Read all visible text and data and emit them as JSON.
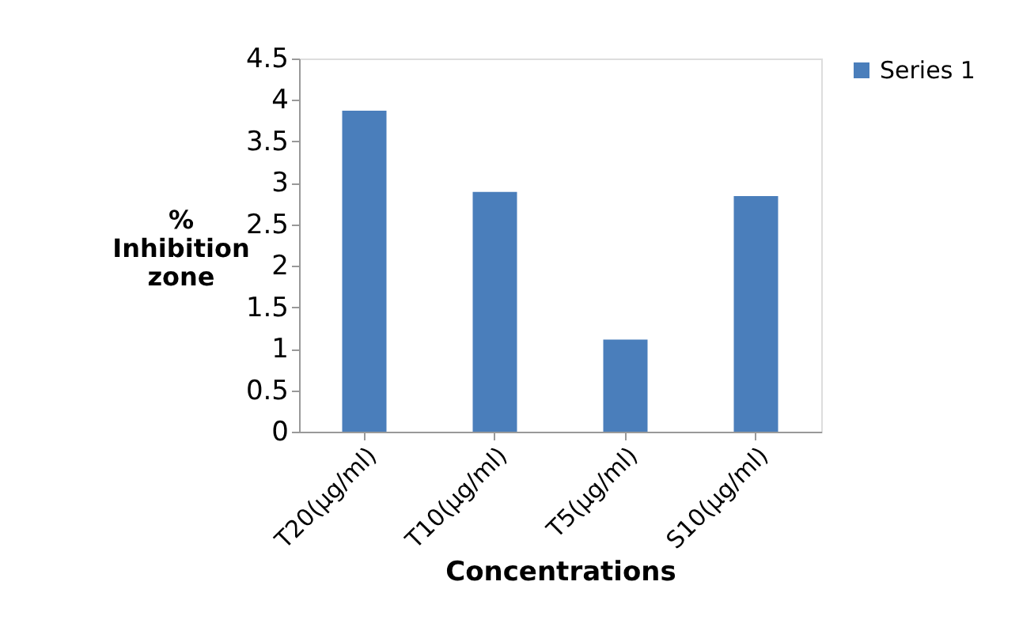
{
  "chart_data": {
    "type": "bar",
    "xlabel": "Concentrations",
    "ylabel": "% Inhibition zone",
    "categories": [
      "T20(µg/ml)",
      "T10(µg/ml)",
      "T5(µg/ml)",
      "S10(µg/ml)"
    ],
    "series": [
      {
        "name": "Series 1",
        "color": "#4a7ebb",
        "values": [
          3.87,
          2.89,
          1.11,
          2.84
        ]
      }
    ],
    "ylim": [
      0,
      4.5
    ],
    "yticks": [
      0,
      0.5,
      1,
      1.5,
      2,
      2.5,
      3,
      3.5,
      4,
      4.5
    ],
    "grid": false,
    "legend": "right"
  }
}
